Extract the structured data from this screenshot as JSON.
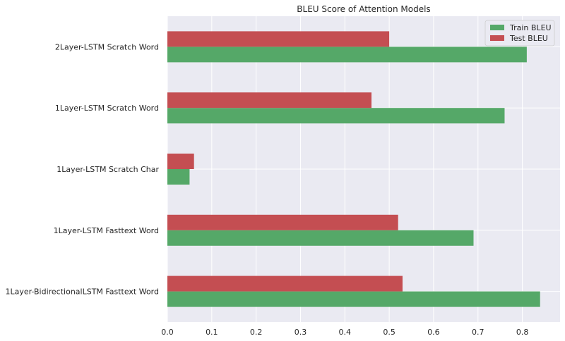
{
  "chart_data": {
    "type": "bar",
    "orientation": "horizontal",
    "title": "BLEU Score of Attention Models",
    "xlabel": "",
    "ylabel": "",
    "xlim": [
      0,
      0.885
    ],
    "xticks": [
      "0.0",
      "0.1",
      "0.2",
      "0.3",
      "0.4",
      "0.5",
      "0.6",
      "0.7",
      "0.8"
    ],
    "categories": [
      "1Layer-BidirectionalLSTM Fasttext Word",
      "1Layer-LSTM Fasttext Word",
      "1Layer-LSTM Scratch Char",
      "1Layer-LSTM Scratch Word",
      "2Layer-LSTM Scratch Word"
    ],
    "series": [
      {
        "name": "Train BLEU",
        "color": "#55a868",
        "values": [
          0.84,
          0.69,
          0.05,
          0.76,
          0.81
        ]
      },
      {
        "name": "Test BLEU",
        "color": "#c44e52",
        "values": [
          0.53,
          0.52,
          0.06,
          0.46,
          0.5
        ]
      }
    ],
    "grid": true,
    "legend": "top-right",
    "background": "#eaeaf2"
  }
}
